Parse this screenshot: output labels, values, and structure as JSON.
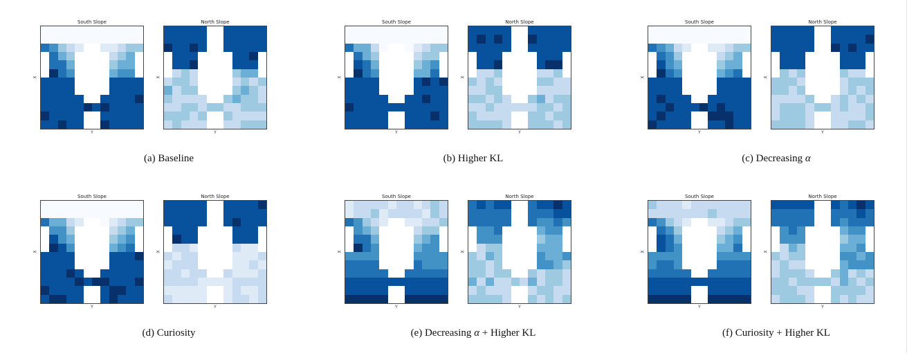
{
  "figure": {
    "panels": [
      {
        "label": "(a) Baseline",
        "left_title": "South Slope",
        "right_title": "North Slope",
        "xlabel": "Y",
        "ylabel": "X",
        "south_variant": "baseline",
        "north_variant": "baseline"
      },
      {
        "label": "(b) Higher KL",
        "left_title": "South Slope",
        "right_title": "North Slope",
        "xlabel": "Y",
        "ylabel": "X",
        "south_variant": "baseline",
        "north_variant": "baseline"
      },
      {
        "label": "(c) Decreasing ",
        "label_symbol": "α",
        "left_title": "South Slope",
        "right_title": "North Slope",
        "xlabel": "Y",
        "ylabel": "X",
        "south_variant": "baseline",
        "north_variant": "baseline"
      },
      {
        "label": "(d) Curiosity",
        "left_title": "South Slope",
        "right_title": "North Slope",
        "xlabel": "Y",
        "ylabel": "X",
        "south_variant": "baseline",
        "north_variant": "light"
      },
      {
        "label": "(e) Decreasing ",
        "label_symbol": "α",
        "label_suffix": " + Higher KL",
        "left_title": "South Slope",
        "right_title": "North Slope",
        "xlabel": "Y",
        "ylabel": "X",
        "south_variant": "gradient",
        "north_variant": "gradient"
      },
      {
        "label": "(f) Curiosity + Higher KL",
        "left_title": "South Slope",
        "right_title": "North Slope",
        "xlabel": "Y",
        "ylabel": "X",
        "south_variant": "gradient",
        "north_variant": "gradient"
      }
    ],
    "colormap": [
      "#f7fbff",
      "#deebf7",
      "#c6dbef",
      "#9ecae1",
      "#6baed6",
      "#4292c6",
      "#2171b5",
      "#08519c",
      "#08306b"
    ]
  }
}
